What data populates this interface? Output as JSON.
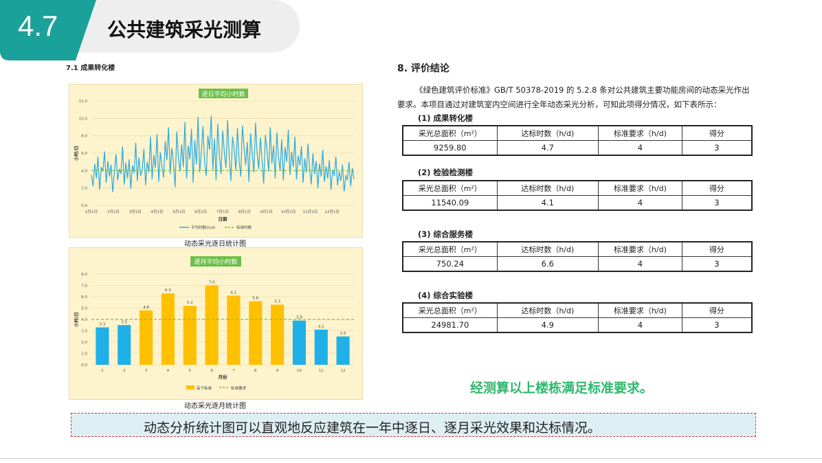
{
  "header": {
    "section_number": "4.7",
    "title": "公共建筑采光测算"
  },
  "left": {
    "subheading": "7.1  成果转化楼",
    "daily_chart_caption": "动态采光逐日统计图",
    "monthly_chart_caption": "动态采光逐月统计图"
  },
  "right": {
    "heading": "8.  评价结论",
    "intro": "《绿色建筑评价标准》GB/T 50378-2019 的 5.2.8 条对公共建筑主要功能房间的动态采光作出要求。本项目通过对建筑室内空间进行全年动态采光分析，可知此项得分情况，如下表所示：",
    "table_headers": [
      "采光总面积（m²）",
      "达标时数（h/d)",
      "标准要求（h/d)",
      "得分"
    ],
    "buildings": [
      {
        "title": "(1) 成果转化楼",
        "row": [
          "9259.80",
          "4.7",
          "4",
          "3"
        ]
      },
      {
        "title": "(2) 检验检测楼",
        "row": [
          "11540.09",
          "4.1",
          "4",
          "3"
        ]
      },
      {
        "title": "(3) 综合服务楼",
        "row": [
          "750.24",
          "6.6",
          "4",
          "3"
        ]
      },
      {
        "title": "(4) 综合实验楼",
        "row": [
          "24981.70",
          "4.9",
          "4",
          "3"
        ]
      }
    ],
    "conclusion": "经测算以上楼栋满足标准要求。"
  },
  "summary": "动态分析统计图可以直观地反应建筑在一年中逐日、逐月采光效果和达标情况。",
  "colors": {
    "teal": "#1aa19a",
    "daily_line": "#29a8e0",
    "threshold": "#7cc04b",
    "bar_above": "#ffc000",
    "bar_below": "#1fb0e8",
    "green_text": "#2fb86d"
  },
  "chart_data": [
    {
      "type": "line",
      "title": "逐日平均小时数",
      "xlabel": "日期",
      "ylabel": "小时/日",
      "ylim": [
        0,
        12
      ],
      "yticks": [
        "0.0",
        "2.0",
        "4.0",
        "6.0",
        "8.0",
        "10.0",
        "12.0"
      ],
      "xticks": [
        "1月1日",
        "2月1日",
        "3月1日",
        "4月1日",
        "5月1日",
        "6月1日",
        "7月1日",
        "8月1日",
        "9月1日",
        "10月1日",
        "11月1日",
        "12月1日"
      ],
      "series": [
        {
          "name": "平均时数(h/d)",
          "style": "line",
          "values": [
            3.5,
            2.2,
            4.8,
            3.1,
            5.6,
            1.8,
            4.4,
            3.9,
            6.2,
            2.6,
            5.1,
            3.3,
            4.7,
            1.5,
            3.8,
            5.9,
            2.9,
            4.2,
            3.6,
            6.8,
            2.4,
            4.9,
            3.1,
            5.3,
            1.9,
            4.6,
            3.7,
            7.2,
            2.8,
            5.5,
            3.4,
            4.1,
            6.5,
            2.3,
            5.0,
            3.8,
            7.9,
            3.0,
            5.8,
            4.3,
            8.2,
            2.7,
            6.1,
            4.5,
            3.2,
            7.4,
            5.2,
            9.0,
            3.6,
            6.6,
            4.8,
            2.1,
            8.5,
            5.6,
            3.9,
            7.0,
            4.4,
            9.6,
            3.1,
            6.9,
            5.3,
            8.8,
            2.6,
            7.5,
            4.7,
            10.2,
            3.8,
            6.2,
            9.1,
            5.0,
            3.4,
            8.0,
            6.4,
            10.3,
            4.1,
            7.7,
            2.9,
            9.4,
            5.8,
            3.6,
            8.6,
            6.1,
            4.3,
            9.8,
            5.4,
            2.8,
            7.9,
            6.6,
            4.0,
            8.9,
            5.1,
            3.3,
            9.2,
            6.8,
            4.6,
            7.3,
            2.7,
            8.3,
            5.9,
            3.8,
            9.5,
            6.0,
            4.2,
            7.8,
            5.2,
            2.5,
            8.1,
            6.3,
            3.9,
            9.0,
            4.8,
            6.9,
            3.1,
            8.4,
            5.5,
            4.0,
            7.6,
            2.9,
            6.7,
            5.0,
            8.7,
            3.5,
            6.2,
            4.4,
            7.9,
            3.0,
            5.7,
            4.6,
            6.8,
            2.6,
            5.4,
            3.8,
            7.1,
            4.2,
            2.4,
            6.0,
            3.6,
            5.1,
            2.0,
            4.8,
            3.3,
            6.4,
            2.7,
            4.5,
            3.1,
            5.2,
            1.8,
            4.1,
            3.4,
            5.6,
            2.3,
            3.9,
            2.8,
            4.7,
            1.6,
            3.5,
            2.9,
            5.0,
            2.2,
            4.3,
            3.0
          ],
          "note": ""
        },
        {
          "name": "标准时数",
          "style": "dashed",
          "values": [
            4
          ]
        }
      ],
      "legend": "bottom"
    },
    {
      "type": "bar",
      "title": "逐月平均小时数",
      "xlabel": "月份",
      "ylabel": "小时/日",
      "ylim": [
        0,
        8
      ],
      "yticks": [
        "0.0",
        "1.0",
        "2.0",
        "3.0",
        "4.0",
        "5.0",
        "6.0",
        "7.0",
        "8.0"
      ],
      "categories": [
        "1",
        "2",
        "3",
        "4",
        "5",
        "6",
        "7",
        "8",
        "9",
        "10",
        "11",
        "12"
      ],
      "values": [
        3.3,
        3.5,
        4.8,
        6.3,
        5.2,
        7.0,
        6.1,
        5.6,
        5.3,
        3.9,
        3.1,
        2.5
      ],
      "data_labels": [
        "3.3",
        "3.5",
        "4.8",
        "6.3",
        "5.2",
        "7.0",
        "6.1",
        "5.6",
        "5.3",
        "3.9",
        "3.1",
        "2.5"
      ],
      "threshold": 4,
      "legend_items": [
        "高于标准",
        "标准要求"
      ],
      "legend": "bottom"
    }
  ]
}
